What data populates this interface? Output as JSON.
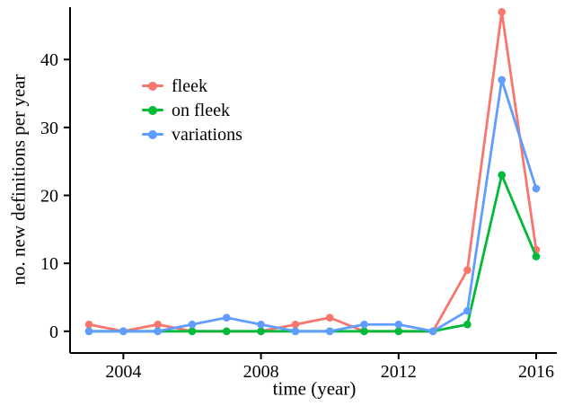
{
  "chart_data": {
    "type": "line",
    "title": "",
    "xlabel": "time (year)",
    "ylabel": "no. new definitions per year",
    "x": [
      2003,
      2004,
      2005,
      2006,
      2007,
      2008,
      2009,
      2010,
      2011,
      2012,
      2013,
      2014,
      2015,
      2016
    ],
    "series": [
      {
        "name": "fleek",
        "color": "#F8766D",
        "values": [
          1,
          0,
          1,
          0,
          0,
          0,
          1,
          2,
          0,
          0,
          0,
          9,
          47,
          12
        ]
      },
      {
        "name": "on fleek",
        "color": "#00BA38",
        "values": [
          0,
          0,
          0,
          0,
          0,
          0,
          0,
          0,
          0,
          0,
          0,
          1,
          23,
          11
        ]
      },
      {
        "name": "variations",
        "color": "#619CFF",
        "values": [
          0,
          0,
          0,
          1,
          2,
          1,
          0,
          0,
          1,
          1,
          0,
          3,
          37,
          21
        ]
      }
    ],
    "xticks": [
      2004,
      2008,
      2012,
      2016
    ],
    "yticks": [
      0,
      10,
      20,
      30,
      40
    ],
    "xlim": [
      2002.45,
      2016.6
    ],
    "ylim": [
      -3.2,
      47.7
    ],
    "grid": false,
    "legend_position": "upper-left-inside",
    "axis_color": "#000000",
    "background": "#ffffff"
  }
}
